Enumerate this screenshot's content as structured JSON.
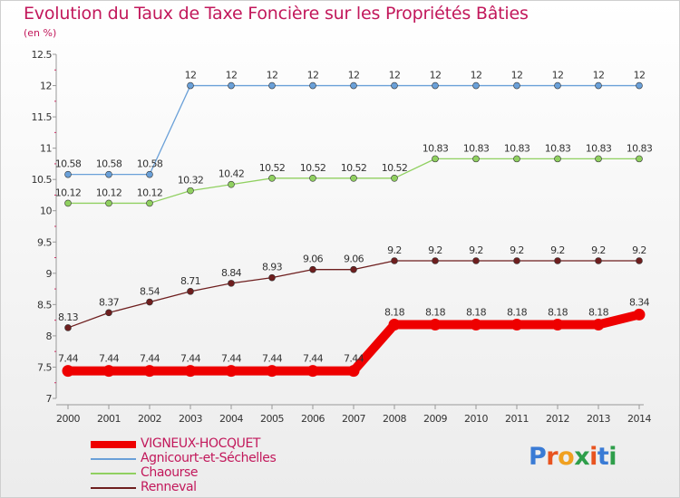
{
  "chart_data": {
    "type": "line",
    "title": "Evolution du Taux de Taxe Foncière sur les Propriétés Bâties",
    "unit_label": "(en %)",
    "x": [
      "2000",
      "2001",
      "2002",
      "2003",
      "2004",
      "2005",
      "2006",
      "2007",
      "2008",
      "2009",
      "2010",
      "2011",
      "2012",
      "2013",
      "2014"
    ],
    "yticks": [
      "7",
      "7.5",
      "8",
      "8.5",
      "9",
      "9.5",
      "10",
      "10.5",
      "11",
      "11.5",
      "12",
      "12.5"
    ],
    "ylim": [
      7,
      12.5
    ],
    "series": [
      {
        "name": "Agnicourt-et-Séchelles",
        "color": "#6aa0d8",
        "values": [
          10.58,
          10.58,
          10.58,
          12,
          12,
          12,
          12,
          12,
          12,
          12,
          12,
          12,
          12,
          12,
          12
        ],
        "labels": [
          "10.58",
          "10.58",
          "10.58",
          "12",
          "12",
          "12",
          "12",
          "12",
          "12",
          "12",
          "12",
          "12",
          "12",
          "12",
          "12"
        ]
      },
      {
        "name": "Chaourse",
        "color": "#90d060",
        "values": [
          10.12,
          10.12,
          10.12,
          10.32,
          10.42,
          10.52,
          10.52,
          10.52,
          10.52,
          10.83,
          10.83,
          10.83,
          10.83,
          10.83,
          10.83
        ],
        "labels": [
          "10.12",
          "10.12",
          "10.12",
          "10.32",
          "10.42",
          "10.52",
          "10.52",
          "10.52",
          "10.52",
          "10.83",
          "10.83",
          "10.83",
          "10.83",
          "10.83",
          "10.83"
        ]
      },
      {
        "name": "Renneval",
        "color": "#6e1e1e",
        "values": [
          8.13,
          8.37,
          8.54,
          8.71,
          8.84,
          8.93,
          9.06,
          9.06,
          9.2,
          9.2,
          9.2,
          9.2,
          9.2,
          9.2,
          9.2
        ],
        "labels": [
          "8.13",
          "8.37",
          "8.54",
          "8.71",
          "8.84",
          "8.93",
          "9.06",
          "9.06",
          "9.2",
          "9.2",
          "9.2",
          "9.2",
          "9.2",
          "9.2",
          "9.2"
        ]
      },
      {
        "name": "VIGNEUX-HOCQUET",
        "color": "#ee0000",
        "values": [
          7.44,
          7.44,
          7.44,
          7.44,
          7.44,
          7.44,
          7.44,
          7.44,
          8.18,
          8.18,
          8.18,
          8.18,
          8.18,
          8.18,
          8.34
        ],
        "labels": [
          "7.44",
          "7.44",
          "7.44",
          "7.44",
          "7.44",
          "7.44",
          "7.44",
          "7.44",
          "8.18",
          "8.18",
          "8.18",
          "8.18",
          "8.18",
          "8.18",
          "8.34"
        ]
      }
    ],
    "legend": [
      "VIGNEUX-HOCQUET",
      "Agnicourt-et-Séchelles",
      "Chaourse",
      "Renneval"
    ]
  },
  "logo": {
    "text": "Proxiti",
    "colors": [
      "#3a7bd5",
      "#e8531f",
      "#f0a020",
      "#2e9e4a",
      "#e8531f",
      "#3a7bd5",
      "#2e9e4a"
    ]
  }
}
